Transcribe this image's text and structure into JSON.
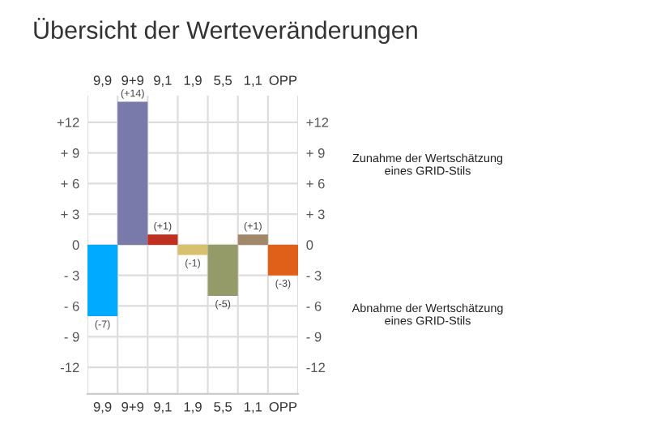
{
  "chart_data": {
    "type": "bar",
    "title": "Übersicht der Werteveränderungen",
    "categories": [
      "9,9",
      "9+9",
      "9,1",
      "1,9",
      "5,5",
      "1,1",
      "OPP"
    ],
    "values": [
      -7,
      14,
      1,
      -1,
      -5,
      1,
      -3
    ],
    "colors": [
      "#00aaff",
      "#7a7aaa",
      "#c03020",
      "#d8c070",
      "#949a68",
      "#a08868",
      "#e0601a"
    ],
    "value_labels": [
      "(-7)",
      "(+14)",
      "(+1)",
      "(-1)",
      "(-5)",
      "(+1)",
      "(-3)"
    ],
    "ylim": [
      -14.6,
      14.6
    ],
    "yticks": [
      {
        "value": -12,
        "label": "-12"
      },
      {
        "value": -9,
        "label": "- 9"
      },
      {
        "value": -6,
        "label": "- 6"
      },
      {
        "value": -3,
        "label": "- 3"
      },
      0,
      {
        "value": 3,
        "label": "+ 3"
      },
      {
        "value": 6,
        "label": "+ 6"
      },
      {
        "value": 9,
        "label": "+ 9"
      },
      {
        "value": 12,
        "label": "+12"
      }
    ],
    "y2lim": [
      -14.6,
      14.6
    ],
    "y2ticks": [
      {
        "value": -12,
        "label": "-12"
      },
      {
        "value": -9,
        "label": "- 9"
      },
      {
        "value": -6,
        "label": "- 6"
      },
      {
        "value": -3,
        "label": "- 3"
      },
      0,
      {
        "value": 3,
        "label": "+ 3"
      },
      {
        "value": 6,
        "label": "+ 6"
      },
      {
        "value": 9,
        "label": "+ 9"
      },
      {
        "value": 12,
        "label": "+12"
      }
    ],
    "grid": true,
    "annotations": [
      "Zunahme der Wertschätzung\neines GRID-Stils",
      "Abnahme der Wertschätzung\neines GRID-Stils"
    ]
  }
}
